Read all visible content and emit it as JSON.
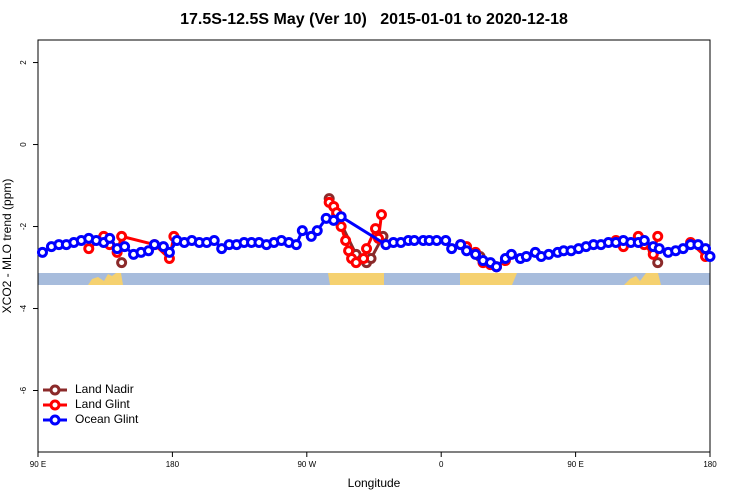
{
  "chart_data": {
    "type": "line",
    "title": "17.5S-12.5S May (Ver 10)   2015-01-01 to 2020-12-18",
    "xlabel": "Longitude",
    "ylabel": "XCO2 - MLO trend (ppm)",
    "xlim": [
      90,
      540
    ],
    "ylim": [
      -7.5,
      2.55
    ],
    "xticks": [
      {
        "value": 90,
        "label": "90 E"
      },
      180,
      {
        "value": 270,
        "label": "90 W"
      },
      {
        "value": 360,
        "label": "0"
      },
      {
        "value": 450,
        "label": "90 E"
      },
      {
        "value": 540,
        "label": "180"
      }
    ],
    "yticks": [
      2,
      0,
      -2,
      -4,
      -6
    ],
    "legend": "bottom-left",
    "series": [
      {
        "name": "Land Nadir",
        "color": "#8b2a2a",
        "x": [
          146,
          null,
          285,
          290,
          303,
          310,
          313,
          321,
          null,
          386,
          397,
          null,
          502,
          505
        ],
        "values": [
          -2.88,
          null,
          -1.32,
          -1.71,
          -2.68,
          -2.88,
          -2.78,
          -2.24,
          null,
          -2.73,
          -2.98,
          null,
          -2.59,
          -2.88
        ]
      },
      {
        "name": "Land Glint",
        "color": "#ff0000",
        "x": [
          124,
          134,
          138,
          143,
          146,
          168,
          178,
          181,
          null,
          285,
          288,
          290,
          293,
          296,
          298,
          300,
          303,
          308,
          310,
          316,
          318,
          320,
          null,
          373,
          377,
          383,
          388,
          393,
          397,
          403,
          null,
          477,
          482,
          492,
          496,
          502,
          505,
          null,
          527,
          537
        ],
        "values": [
          -2.54,
          -2.24,
          -2.44,
          -2.63,
          -2.24,
          -2.44,
          -2.78,
          -2.24,
          null,
          -1.41,
          -1.51,
          -1.66,
          -2.0,
          -2.34,
          -2.59,
          -2.78,
          -2.88,
          -2.78,
          -2.54,
          -2.05,
          -2.29,
          -1.71,
          null,
          -2.44,
          -2.49,
          -2.63,
          -2.88,
          -2.93,
          -2.98,
          -2.83,
          null,
          -2.34,
          -2.49,
          -2.24,
          -2.44,
          -2.68,
          -2.24,
          null,
          -2.39,
          -2.73
        ]
      },
      {
        "name": "Ocean Glint",
        "color": "#0000ff",
        "x": [
          93,
          99,
          104,
          109,
          114,
          119,
          124,
          129,
          134,
          138,
          143,
          148,
          154,
          159,
          164,
          168,
          174,
          178,
          183,
          188,
          193,
          198,
          203,
          208,
          213,
          218,
          223,
          228,
          233,
          238,
          243,
          248,
          253,
          258,
          263,
          267,
          273,
          277,
          283,
          288,
          293,
          323,
          328,
          333,
          338,
          342,
          348,
          352,
          357,
          363,
          367,
          373,
          377,
          383,
          388,
          393,
          397,
          403,
          407,
          413,
          417,
          423,
          427,
          432,
          438,
          442,
          447,
          452,
          457,
          462,
          467,
          472,
          477,
          482,
          487,
          492,
          496,
          502,
          506,
          512,
          517,
          522,
          527,
          532,
          537,
          540
        ],
        "values": [
          -2.63,
          -2.49,
          -2.44,
          -2.44,
          -2.39,
          -2.34,
          -2.29,
          -2.34,
          -2.39,
          -2.29,
          -2.54,
          -2.49,
          -2.68,
          -2.63,
          -2.59,
          -2.44,
          -2.49,
          -2.63,
          -2.34,
          -2.39,
          -2.34,
          -2.39,
          -2.39,
          -2.34,
          -2.54,
          -2.44,
          -2.44,
          -2.39,
          -2.39,
          -2.39,
          -2.44,
          -2.39,
          -2.34,
          -2.39,
          -2.44,
          -2.1,
          -2.24,
          -2.1,
          -1.8,
          -1.85,
          -1.76,
          -2.44,
          -2.39,
          -2.39,
          -2.34,
          -2.34,
          -2.34,
          -2.34,
          -2.34,
          -2.34,
          -2.54,
          -2.44,
          -2.59,
          -2.68,
          -2.83,
          -2.88,
          -2.98,
          -2.78,
          -2.68,
          -2.78,
          -2.73,
          -2.63,
          -2.73,
          -2.68,
          -2.63,
          -2.59,
          -2.59,
          -2.54,
          -2.49,
          -2.44,
          -2.44,
          -2.39,
          -2.39,
          -2.34,
          -2.39,
          -2.39,
          -2.34,
          -2.49,
          -2.54,
          -2.63,
          -2.59,
          -2.54,
          -2.44,
          -2.44,
          -2.54,
          -2.73
        ]
      }
    ]
  }
}
